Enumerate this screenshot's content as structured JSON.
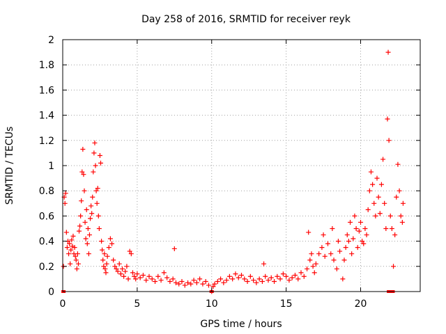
{
  "chart_data": {
    "type": "scatter",
    "title": "Day 258 of 2016, SRMTID for receiver reyk",
    "xlabel": "GPS time / hours",
    "ylabel": "SRMTID / TECUs",
    "xlim": [
      0,
      24
    ],
    "ylim": [
      0,
      2
    ],
    "xticks": [
      0,
      5,
      10,
      15,
      20
    ],
    "xtick_labels": [
      "0",
      "5",
      "10",
      "15",
      "20"
    ],
    "yticks": [
      0,
      0.2,
      0.4,
      0.6,
      0.8,
      1.0,
      1.2,
      1.4,
      1.6,
      1.8,
      2.0
    ],
    "ytick_labels": [
      "0",
      "0.2",
      "0.4",
      "0.6",
      "0.8",
      "1",
      "1.2",
      "1.4",
      "1.6",
      "1.8",
      "2"
    ],
    "grid": true,
    "marker": "+",
    "color": "#ff0000",
    "series": [
      {
        "name": "SRMTID",
        "points": [
          [
            0.05,
            0.2
          ],
          [
            0.1,
            0.75
          ],
          [
            0.15,
            0.7
          ],
          [
            0.2,
            0.78
          ],
          [
            0.25,
            0.47
          ],
          [
            0.3,
            0.35
          ],
          [
            0.35,
            0.4
          ],
          [
            0.4,
            0.3
          ],
          [
            0.45,
            0.38
          ],
          [
            0.5,
            0.22
          ],
          [
            0.55,
            0.33
          ],
          [
            0.6,
            0.41
          ],
          [
            0.65,
            0.36
          ],
          [
            0.7,
            0.44
          ],
          [
            0.75,
            0.3
          ],
          [
            0.8,
            0.35
          ],
          [
            0.85,
            0.28
          ],
          [
            0.9,
            0.25
          ],
          [
            0.95,
            0.18
          ],
          [
            1.0,
            0.3
          ],
          [
            1.05,
            0.22
          ],
          [
            1.1,
            0.48
          ],
          [
            1.15,
            0.52
          ],
          [
            1.2,
            0.6
          ],
          [
            1.25,
            0.72
          ],
          [
            1.3,
            0.95
          ],
          [
            1.35,
            1.13
          ],
          [
            1.4,
            0.93
          ],
          [
            1.45,
            0.8
          ],
          [
            1.5,
            0.55
          ],
          [
            1.55,
            0.42
          ],
          [
            1.6,
            0.65
          ],
          [
            1.65,
            0.38
          ],
          [
            1.7,
            0.5
          ],
          [
            1.75,
            0.3
          ],
          [
            1.8,
            0.45
          ],
          [
            1.85,
            0.58
          ],
          [
            1.9,
            0.68
          ],
          [
            1.95,
            0.62
          ],
          [
            2.0,
            0.75
          ],
          [
            2.05,
            0.95
          ],
          [
            2.1,
            1.1
          ],
          [
            2.15,
            1.18
          ],
          [
            2.2,
            1.0
          ],
          [
            2.25,
            0.8
          ],
          [
            2.3,
            0.7
          ],
          [
            2.35,
            0.82
          ],
          [
            2.4,
            0.6
          ],
          [
            2.45,
            0.5
          ],
          [
            2.5,
            1.08
          ],
          [
            2.55,
            1.02
          ],
          [
            2.6,
            0.4
          ],
          [
            2.65,
            0.33
          ],
          [
            2.7,
            0.25
          ],
          [
            2.75,
            0.2
          ],
          [
            2.8,
            0.3
          ],
          [
            2.85,
            0.18
          ],
          [
            2.9,
            0.15
          ],
          [
            2.95,
            0.22
          ],
          [
            3.0,
            0.28
          ],
          [
            3.1,
            0.35
          ],
          [
            3.2,
            0.42
          ],
          [
            3.3,
            0.38
          ],
          [
            3.4,
            0.25
          ],
          [
            3.5,
            0.2
          ],
          [
            3.6,
            0.18
          ],
          [
            3.7,
            0.16
          ],
          [
            3.8,
            0.22
          ],
          [
            3.9,
            0.14
          ],
          [
            4.0,
            0.18
          ],
          [
            4.1,
            0.12
          ],
          [
            4.2,
            0.16
          ],
          [
            4.3,
            0.2
          ],
          [
            4.4,
            0.1
          ],
          [
            4.5,
            0.32
          ],
          [
            4.6,
            0.3
          ],
          [
            4.7,
            0.15
          ],
          [
            4.8,
            0.12
          ],
          [
            4.9,
            0.1
          ],
          [
            5.0,
            0.14
          ],
          [
            5.2,
            0.11
          ],
          [
            5.4,
            0.13
          ],
          [
            5.6,
            0.09
          ],
          [
            5.8,
            0.12
          ],
          [
            6.0,
            0.1
          ],
          [
            6.2,
            0.08
          ],
          [
            6.4,
            0.12
          ],
          [
            6.6,
            0.09
          ],
          [
            6.8,
            0.15
          ],
          [
            7.0,
            0.11
          ],
          [
            7.2,
            0.08
          ],
          [
            7.4,
            0.1
          ],
          [
            7.5,
            0.34
          ],
          [
            7.6,
            0.07
          ],
          [
            7.8,
            0.06
          ],
          [
            8.0,
            0.08
          ],
          [
            8.2,
            0.05
          ],
          [
            8.4,
            0.07
          ],
          [
            8.6,
            0.06
          ],
          [
            8.8,
            0.09
          ],
          [
            9.0,
            0.07
          ],
          [
            9.2,
            0.1
          ],
          [
            9.4,
            0.06
          ],
          [
            9.6,
            0.08
          ],
          [
            9.8,
            0.05
          ],
          [
            10.0,
            0.0
          ],
          [
            10.1,
            0.04
          ],
          [
            10.2,
            0.06
          ],
          [
            10.4,
            0.08
          ],
          [
            10.6,
            0.1
          ],
          [
            10.8,
            0.07
          ],
          [
            11.0,
            0.09
          ],
          [
            11.2,
            0.12
          ],
          [
            11.4,
            0.1
          ],
          [
            11.6,
            0.14
          ],
          [
            11.8,
            0.11
          ],
          [
            12.0,
            0.13
          ],
          [
            12.2,
            0.1
          ],
          [
            12.4,
            0.08
          ],
          [
            12.6,
            0.12
          ],
          [
            12.8,
            0.09
          ],
          [
            13.0,
            0.07
          ],
          [
            13.2,
            0.1
          ],
          [
            13.4,
            0.08
          ],
          [
            13.5,
            0.22
          ],
          [
            13.6,
            0.12
          ],
          [
            13.8,
            0.09
          ],
          [
            14.0,
            0.11
          ],
          [
            14.2,
            0.08
          ],
          [
            14.4,
            0.12
          ],
          [
            14.6,
            0.1
          ],
          [
            14.8,
            0.14
          ],
          [
            15.0,
            0.12
          ],
          [
            15.2,
            0.09
          ],
          [
            15.4,
            0.11
          ],
          [
            15.6,
            0.13
          ],
          [
            15.8,
            0.1
          ],
          [
            16.0,
            0.15
          ],
          [
            16.2,
            0.12
          ],
          [
            16.4,
            0.18
          ],
          [
            16.5,
            0.47
          ],
          [
            16.6,
            0.25
          ],
          [
            16.7,
            0.3
          ],
          [
            16.8,
            0.2
          ],
          [
            16.9,
            0.15
          ],
          [
            17.0,
            0.22
          ],
          [
            17.2,
            0.3
          ],
          [
            17.4,
            0.35
          ],
          [
            17.5,
            0.45
          ],
          [
            17.6,
            0.28
          ],
          [
            17.8,
            0.38
          ],
          [
            18.0,
            0.3
          ],
          [
            18.1,
            0.5
          ],
          [
            18.2,
            0.25
          ],
          [
            18.4,
            0.18
          ],
          [
            18.5,
            0.4
          ],
          [
            18.6,
            0.32
          ],
          [
            18.8,
            0.1
          ],
          [
            18.9,
            0.25
          ],
          [
            19.0,
            0.35
          ],
          [
            19.1,
            0.45
          ],
          [
            19.2,
            0.4
          ],
          [
            19.3,
            0.55
          ],
          [
            19.4,
            0.3
          ],
          [
            19.5,
            0.42
          ],
          [
            19.6,
            0.6
          ],
          [
            19.7,
            0.5
          ],
          [
            19.8,
            0.35
          ],
          [
            19.9,
            0.48
          ],
          [
            20.0,
            0.55
          ],
          [
            20.1,
            0.4
          ],
          [
            20.2,
            0.38
          ],
          [
            20.3,
            0.5
          ],
          [
            20.4,
            0.45
          ],
          [
            20.5,
            0.65
          ],
          [
            20.6,
            0.8
          ],
          [
            20.7,
            0.95
          ],
          [
            20.8,
            0.85
          ],
          [
            20.9,
            0.7
          ],
          [
            21.0,
            0.6
          ],
          [
            21.1,
            0.9
          ],
          [
            21.2,
            0.75
          ],
          [
            21.3,
            0.62
          ],
          [
            21.4,
            0.85
          ],
          [
            21.5,
            1.05
          ],
          [
            21.6,
            0.7
          ],
          [
            21.7,
            0.5
          ],
          [
            21.8,
            1.37
          ],
          [
            21.85,
            1.9
          ],
          [
            21.9,
            1.2
          ],
          [
            22.0,
            0.6
          ],
          [
            22.1,
            0.5
          ],
          [
            22.2,
            0.2
          ],
          [
            22.3,
            0.45
          ],
          [
            22.4,
            0.75
          ],
          [
            22.5,
            1.01
          ],
          [
            22.6,
            0.8
          ],
          [
            22.7,
            0.6
          ],
          [
            22.8,
            0.55
          ],
          [
            22.85,
            0.7
          ]
        ]
      }
    ],
    "zero_markers": [
      0.05,
      10.0,
      21.9,
      22.15
    ]
  }
}
